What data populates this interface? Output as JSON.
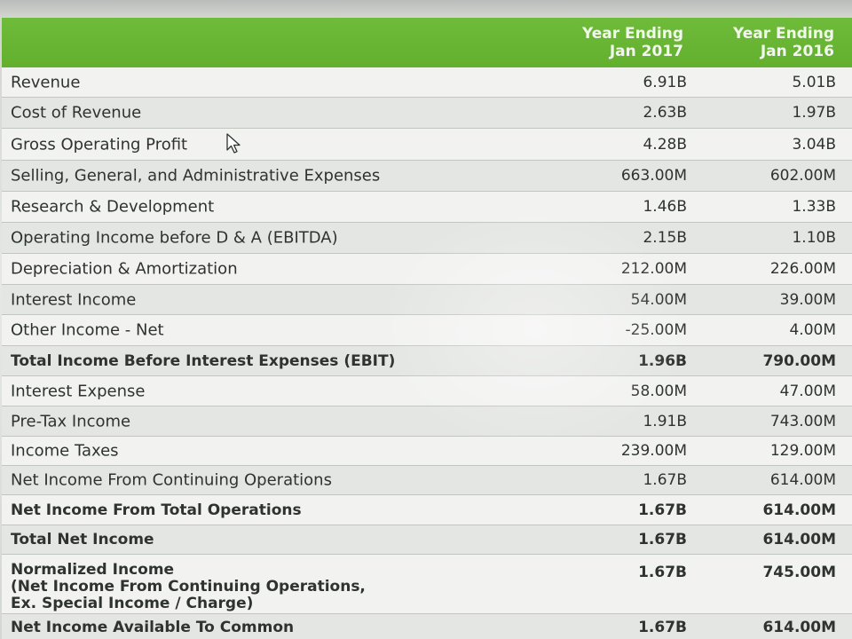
{
  "table": {
    "columns": [
      {
        "line1": "Year Ending",
        "line2": "Jan 2017"
      },
      {
        "line1": "Year Ending",
        "line2": "Jan 2016"
      }
    ],
    "rows": [
      {
        "label": "Revenue",
        "v2017": "6.91B",
        "v2016": "5.01B"
      },
      {
        "label": "Cost of Revenue",
        "v2017": "2.63B",
        "v2016": "1.97B"
      },
      {
        "label": "Gross Operating Profit",
        "v2017": "4.28B",
        "v2016": "3.04B"
      },
      {
        "label": "Selling, General, and Administrative Expenses",
        "v2017": "663.00M",
        "v2016": "602.00M"
      },
      {
        "label": "Research & Development",
        "v2017": "1.46B",
        "v2016": "1.33B"
      },
      {
        "label": "Operating Income before D & A (EBITDA)",
        "v2017": "2.15B",
        "v2016": "1.10B"
      },
      {
        "label": "Depreciation & Amortization",
        "v2017": "212.00M",
        "v2016": "226.00M"
      },
      {
        "label": "Interest Income",
        "v2017": "54.00M",
        "v2016": "39.00M"
      },
      {
        "label": "Other Income - Net",
        "v2017": "-25.00M",
        "v2016": "4.00M"
      },
      {
        "label": "Total Income Before Interest Expenses (EBIT)",
        "v2017": "1.96B",
        "v2016": "790.00M"
      },
      {
        "label": "Interest Expense",
        "v2017": "58.00M",
        "v2016": "47.00M"
      },
      {
        "label": "Pre-Tax Income",
        "v2017": "1.91B",
        "v2016": "743.00M"
      },
      {
        "label": "Income Taxes",
        "v2017": "239.00M",
        "v2016": "129.00M"
      },
      {
        "label": "Net Income From Continuing Operations",
        "v2017": "1.67B",
        "v2016": "614.00M"
      },
      {
        "label": "Net Income From Total Operations",
        "v2017": "1.67B",
        "v2016": "614.00M"
      },
      {
        "label": "Total Net Income",
        "v2017": "1.67B",
        "v2016": "614.00M"
      },
      {
        "label": "Normalized Income",
        "label2": "(Net Income From Continuing Operations,",
        "label3": "Ex. Special Income / Charge)",
        "v2017": "1.67B",
        "v2016": "745.00M"
      },
      {
        "label": "Net Income Available To Common",
        "v2017": "1.67B",
        "v2016": "614.00M"
      }
    ]
  },
  "colors": {
    "header_green": "#66b432",
    "header_text": "#f2f7ee",
    "body_text": "#2f3330"
  }
}
